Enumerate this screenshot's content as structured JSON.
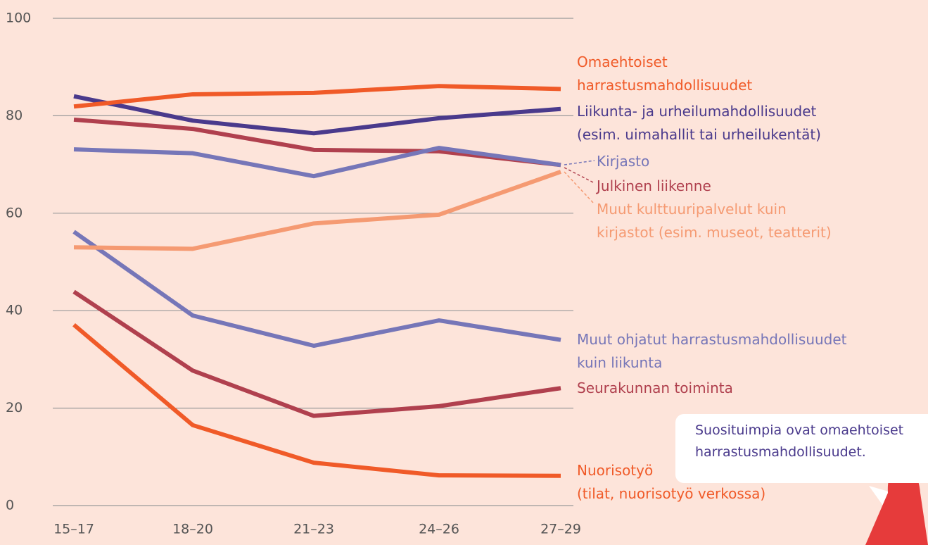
{
  "chart_data": {
    "type": "line",
    "categories": [
      "15–17",
      "18–20",
      "21–23",
      "24–26",
      "27–29"
    ],
    "ylim": [
      0,
      100
    ],
    "yticks": [
      0,
      20,
      40,
      60,
      80,
      100
    ],
    "grid": true,
    "series": [
      {
        "name": "Omaehtoiset\nharrastusmahdollisuudet",
        "color": "#f05a28",
        "values": [
          81.9,
          84.4,
          84.7,
          86.1,
          85.5
        ]
      },
      {
        "name": "Liikunta- ja urheilumahdollisuudet\n(esim. uimahallit tai urheilukentät)",
        "color": "#4a3a8c",
        "values": [
          84.0,
          79.0,
          76.4,
          79.5,
          81.4
        ]
      },
      {
        "name": "Kirjasto",
        "color": "#7676b8",
        "values": [
          73.1,
          72.3,
          67.6,
          73.4,
          69.9
        ]
      },
      {
        "name": "Julkinen liikenne",
        "color": "#b0404e",
        "values": [
          79.2,
          77.3,
          73.0,
          72.7,
          69.9
        ]
      },
      {
        "name": "Muut kulttuuripalvelut kuin\nkirjastot (esim. museot, teatterit)",
        "color": "#f59a72",
        "values": [
          53.0,
          52.7,
          57.9,
          59.7,
          68.5
        ]
      },
      {
        "name": "Muut ohjatut harrastusmahdollisuudet\nkuin liikunta",
        "color": "#7676b8",
        "values": [
          56.2,
          39.0,
          32.8,
          38.0,
          34.0
        ]
      },
      {
        "name": "Seurakunnan toiminta",
        "color": "#b0404e",
        "values": [
          43.9,
          27.7,
          18.4,
          20.4,
          24.1
        ]
      },
      {
        "name": "Nuorisotyö\n(tilat, nuorisotyö verkossa)",
        "color": "#f05a28",
        "values": [
          37.1,
          16.5,
          8.8,
          6.2,
          6.1
        ]
      }
    ]
  },
  "callout": {
    "text": "Suosituimpia ovat omaehtoiset harrastusmahdollisuudet."
  }
}
